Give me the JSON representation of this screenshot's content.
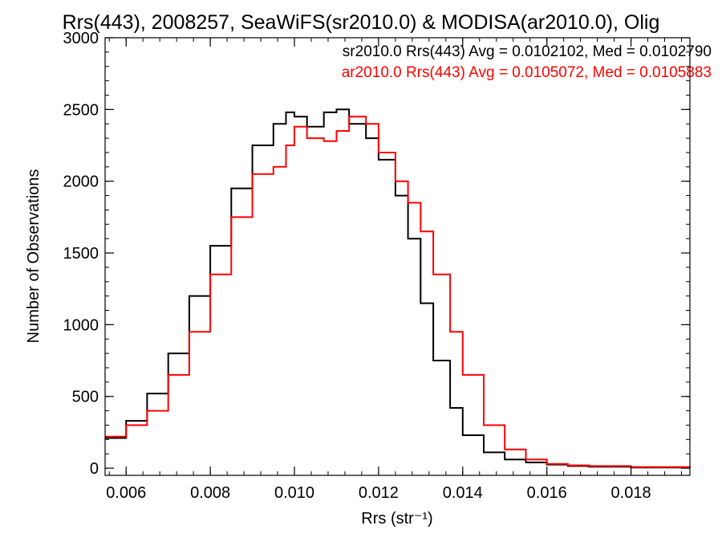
{
  "chart_data": {
    "type": "line",
    "title": "Rrs(443), 2008257, SeaWiFS(sr2010.0) & MODISA(ar2010.0), Olig",
    "xlabel": "Rrs (str⁻¹)",
    "ylabel": "Number of Observations",
    "xlim": [
      0.0055,
      0.0194
    ],
    "ylim": [
      -50,
      3000
    ],
    "x_ticks": [
      "0.006",
      "0.008",
      "0.010",
      "0.012",
      "0.014",
      "0.016",
      "0.018"
    ],
    "y_ticks": [
      "0",
      "500",
      "1000",
      "1500",
      "2000",
      "2500",
      "3000"
    ],
    "legend_position": "top-right",
    "series": [
      {
        "name": "sr2010.0 Rrs(443) Avg = 0.0102102, Med = 0.0102790",
        "color": "#000000",
        "x": [
          0.0055,
          0.006,
          0.0065,
          0.007,
          0.0075,
          0.008,
          0.0085,
          0.009,
          0.0095,
          0.0098,
          0.01,
          0.0103,
          0.0107,
          0.011,
          0.0113,
          0.0117,
          0.012,
          0.0124,
          0.0127,
          0.013,
          0.0133,
          0.0137,
          0.014,
          0.0145,
          0.015,
          0.0155,
          0.016,
          0.0165,
          0.017,
          0.018,
          0.0194
        ],
        "values": [
          210,
          330,
          520,
          800,
          1200,
          1550,
          1950,
          2250,
          2400,
          2480,
          2450,
          2380,
          2480,
          2500,
          2400,
          2300,
          2150,
          1900,
          1600,
          1150,
          750,
          420,
          230,
          110,
          60,
          40,
          25,
          15,
          10,
          5,
          3
        ]
      },
      {
        "name": "ar2010.0 Rrs(443) Avg = 0.0105072, Med = 0.0105883",
        "color": "#ff0000",
        "x": [
          0.0055,
          0.006,
          0.0065,
          0.007,
          0.0075,
          0.008,
          0.0085,
          0.009,
          0.0095,
          0.0098,
          0.01,
          0.0103,
          0.0107,
          0.011,
          0.0113,
          0.0117,
          0.012,
          0.0124,
          0.0127,
          0.013,
          0.0133,
          0.0137,
          0.014,
          0.0145,
          0.015,
          0.0155,
          0.016,
          0.0165,
          0.017,
          0.018,
          0.0194
        ],
        "values": [
          220,
          300,
          400,
          650,
          950,
          1350,
          1750,
          2050,
          2100,
          2250,
          2380,
          2300,
          2280,
          2350,
          2450,
          2400,
          2200,
          2000,
          1850,
          1650,
          1350,
          950,
          650,
          300,
          130,
          60,
          30,
          20,
          15,
          8,
          5
        ]
      }
    ]
  }
}
